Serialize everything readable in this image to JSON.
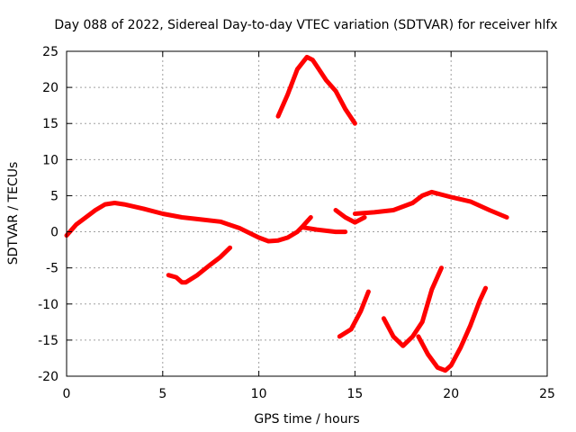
{
  "chart_data": {
    "type": "line",
    "title": "Day 088 of 2022, Sidereal Day-to-day VTEC variation (SDTVAR) for receiver hlfx",
    "xlabel": "GPS time / hours",
    "ylabel": "SDTVAR / TECUs",
    "xlim": [
      0,
      25
    ],
    "ylim": [
      -20,
      25
    ],
    "x_ticks": [
      "0",
      "5",
      "10",
      "15",
      "20",
      "25"
    ],
    "y_ticks": [
      "25",
      "20",
      "15",
      "10",
      "5",
      "0",
      "-5",
      "-10",
      "-15",
      "-20"
    ],
    "grid": true,
    "series_color": "#ff0000",
    "segments": [
      {
        "x": [
          0.0,
          0.5,
          1.0,
          1.5,
          2.0,
          2.5,
          3.0,
          4.0,
          5.0,
          6.0,
          7.0,
          8.0,
          9.0,
          10.0,
          10.5,
          11.0,
          11.5,
          12.0,
          12.3,
          12.7
        ],
        "y": [
          -0.5,
          1.0,
          2.0,
          3.0,
          3.8,
          4.0,
          3.8,
          3.2,
          2.5,
          2.0,
          1.7,
          1.4,
          0.5,
          -0.8,
          -1.3,
          -1.2,
          -0.8,
          0.0,
          0.8,
          2.0
        ]
      },
      {
        "x": [
          12.3,
          13.0,
          14.0,
          14.5
        ],
        "y": [
          0.6,
          0.3,
          0.0,
          0.0
        ]
      },
      {
        "x": [
          14.0,
          14.5,
          15.0,
          15.5
        ],
        "y": [
          3.0,
          2.0,
          1.3,
          2.0
        ]
      },
      {
        "x": [
          15.0,
          16.0,
          17.0,
          18.0,
          18.5,
          19.0,
          20.0,
          21.0,
          22.0,
          22.9
        ],
        "y": [
          2.5,
          2.7,
          3.0,
          4.0,
          5.0,
          5.5,
          4.8,
          4.2,
          3.0,
          2.0
        ]
      },
      {
        "x": [
          11.0,
          11.5,
          12.0,
          12.5,
          12.8,
          13.0,
          13.5,
          14.0,
          14.5,
          15.0
        ],
        "y": [
          16.0,
          19.0,
          22.5,
          24.2,
          23.8,
          23.0,
          21.0,
          19.5,
          17.0,
          15.0
        ]
      },
      {
        "x": [
          5.3,
          5.7,
          6.0,
          6.2,
          6.8,
          7.5,
          8.0,
          8.5
        ],
        "y": [
          -6.0,
          -6.3,
          -7.0,
          -7.0,
          -6.0,
          -4.5,
          -3.5,
          -2.2
        ]
      },
      {
        "x": [
          14.2,
          14.8,
          15.3,
          15.7
        ],
        "y": [
          -14.5,
          -13.5,
          -11.0,
          -8.3
        ]
      },
      {
        "x": [
          16.5,
          17.0,
          17.5,
          18.0,
          18.5,
          19.0,
          19.5
        ],
        "y": [
          -12.0,
          -14.5,
          -15.8,
          -14.5,
          -12.5,
          -8.0,
          -5.0
        ]
      },
      {
        "x": [
          18.3,
          18.8,
          19.3,
          19.7,
          20.0,
          20.5,
          21.0,
          21.5,
          21.8
        ],
        "y": [
          -14.5,
          -17.0,
          -18.8,
          -19.2,
          -18.5,
          -16.0,
          -13.0,
          -9.5,
          -7.8
        ]
      }
    ]
  }
}
